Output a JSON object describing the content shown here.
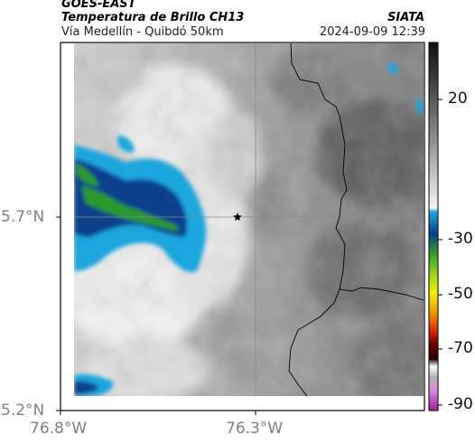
{
  "header": {
    "satellite": "GOES-EAST",
    "product": "Temperatura de Brillo CH13",
    "region": "Vía Medellín - Quibdó 50km",
    "brand": "SIATA",
    "datetime": "2024-09-09 12:39"
  },
  "map": {
    "lat_ticks": [
      "5.7°N",
      "5.2°N"
    ],
    "lon_ticks": [
      "76.8°W",
      "76.3°W"
    ],
    "marker_icon": "star-icon"
  },
  "colorbar": {
    "ticks": [
      "20",
      "-30",
      "-50",
      "-70",
      "-90"
    ],
    "colors": [
      "#111111",
      "#dcdcdc",
      "#18a0d8",
      "#2a9a2a",
      "#f2f200",
      "#e55000",
      "#5a0000",
      "#c040c0"
    ]
  }
}
